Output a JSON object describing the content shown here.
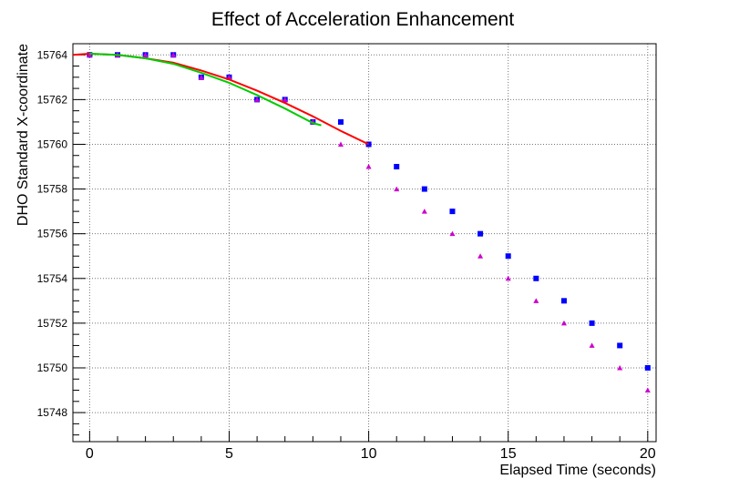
{
  "chart_data": {
    "type": "scatter",
    "title": "Effect of Acceleration Enhancement",
    "xlabel": "Elapsed Time (seconds)",
    "ylabel": "DHO Standard X-coordinate",
    "xlim": [
      -0.6,
      20.3
    ],
    "ylim": [
      15746.7,
      15764.5
    ],
    "xticks": [
      0,
      5,
      10,
      15,
      20
    ],
    "yticks": [
      15748,
      15750,
      15752,
      15754,
      15756,
      15758,
      15760,
      15762,
      15764
    ],
    "grid": true,
    "series": [
      {
        "marker": "square",
        "color": "#0000ff",
        "points": [
          [
            0,
            15764
          ],
          [
            1,
            15764
          ],
          [
            2,
            15764
          ],
          [
            3,
            15764
          ],
          [
            4,
            15763
          ],
          [
            5,
            15763
          ],
          [
            6,
            15762
          ],
          [
            7,
            15762
          ],
          [
            8,
            15761
          ],
          [
            9,
            15761
          ],
          [
            10,
            15760
          ],
          [
            11,
            15759
          ],
          [
            12,
            15758
          ],
          [
            13,
            15757
          ],
          [
            14,
            15756
          ],
          [
            15,
            15755
          ],
          [
            16,
            15754
          ],
          [
            17,
            15753
          ],
          [
            18,
            15752
          ],
          [
            19,
            15751
          ],
          [
            20,
            15750
          ]
        ]
      },
      {
        "marker": "triangle",
        "color": "#cc00cc",
        "points": [
          [
            0,
            15764
          ],
          [
            1,
            15764
          ],
          [
            2,
            15764
          ],
          [
            3,
            15764
          ],
          [
            4,
            15763
          ],
          [
            5,
            15763
          ],
          [
            6,
            15762
          ],
          [
            7,
            15762
          ],
          [
            8,
            15761
          ],
          [
            9,
            15760
          ],
          [
            10,
            15759
          ],
          [
            11,
            15758
          ],
          [
            12,
            15757
          ],
          [
            13,
            15756
          ],
          [
            14,
            15755
          ],
          [
            15,
            15754
          ],
          [
            16,
            15753
          ],
          [
            17,
            15752
          ],
          [
            18,
            15751
          ],
          [
            19,
            15750
          ],
          [
            20,
            15749
          ]
        ]
      },
      {
        "marker": "line",
        "color": "#ff0000",
        "points": [
          [
            -0.6,
            15764
          ],
          [
            0,
            15764.05
          ],
          [
            1,
            15764
          ],
          [
            2,
            15763.85
          ],
          [
            3,
            15763.65
          ],
          [
            4,
            15763.3
          ],
          [
            5,
            15762.9
          ],
          [
            6,
            15762.4
          ],
          [
            7,
            15761.85
          ],
          [
            8,
            15761.25
          ],
          [
            9,
            15760.6
          ],
          [
            10,
            15760
          ]
        ]
      },
      {
        "marker": "line",
        "color": "#00cc00",
        "points": [
          [
            0,
            15764.05
          ],
          [
            1,
            15764
          ],
          [
            2,
            15763.85
          ],
          [
            3,
            15763.6
          ],
          [
            4,
            15763.2
          ],
          [
            5,
            15762.75
          ],
          [
            6,
            15762.2
          ],
          [
            7,
            15761.6
          ],
          [
            8,
            15760.95
          ],
          [
            8.3,
            15760.85
          ]
        ]
      }
    ]
  }
}
